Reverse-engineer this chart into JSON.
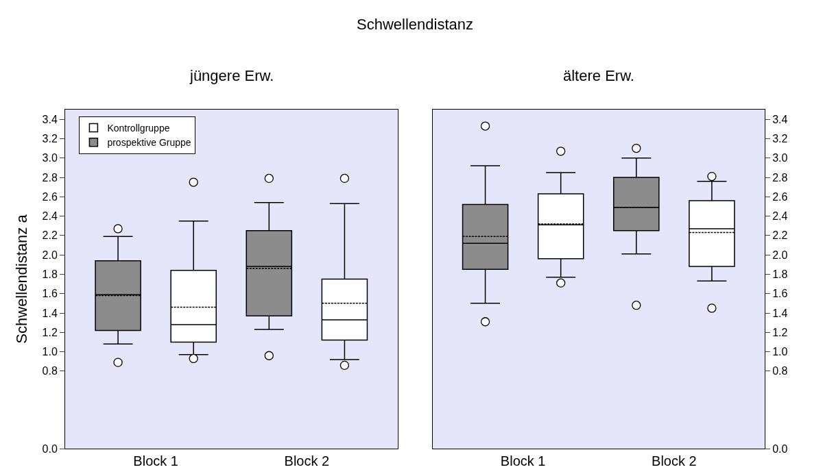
{
  "chart_data": [
    {
      "type": "box",
      "title": "jüngere Erw.",
      "annotations": [
        "Schwellendistanz"
      ],
      "ylabel": "Schwellendistanz a",
      "categories": [
        "Block 1",
        "Block 2"
      ],
      "ylim": [
        0,
        3.5
      ],
      "yticks": [
        {
          "value": 0,
          "label": "0.0"
        },
        0.8,
        {
          "value": 1,
          "label": "1.0"
        },
        1.2,
        1.4,
        1.6,
        1.8,
        {
          "value": 2,
          "label": "2.0"
        },
        2.2,
        2.4,
        2.6,
        2.8,
        {
          "value": 3,
          "label": "3.0"
        },
        3.2,
        3.4
      ],
      "legend": "top left",
      "grid": false,
      "series": [
        {
          "name": "prospektive Gruppe",
          "color": "#8c8c8c",
          "boxes": [
            {
              "low": 1.08,
              "q1": 1.22,
              "median": 1.59,
              "q3": 1.94,
              "high": 2.19,
              "mean": 1.58,
              "outliers": [
                2.27,
                0.89
              ]
            },
            {
              "low": 1.23,
              "q1": 1.37,
              "median": 1.88,
              "q3": 2.25,
              "high": 2.54,
              "mean": 1.86,
              "outliers": [
                2.79,
                0.96
              ]
            }
          ]
        },
        {
          "name": "Kontrollgruppe",
          "color": "#ffffff",
          "boxes": [
            {
              "low": 0.97,
              "q1": 1.1,
              "median": 1.28,
              "q3": 1.84,
              "high": 2.35,
              "mean": 1.46,
              "outliers": [
                2.75,
                0.93
              ]
            },
            {
              "low": 0.92,
              "q1": 1.12,
              "median": 1.33,
              "q3": 1.75,
              "high": 2.53,
              "mean": 1.5,
              "outliers": [
                2.79,
                0.86
              ]
            }
          ]
        }
      ]
    },
    {
      "type": "box",
      "title": "ältere Erw.",
      "categories": [
        "Block 1",
        "Block 2"
      ],
      "ylim": [
        0,
        3.5
      ],
      "yticks": [
        {
          "value": 0,
          "label": "0.0"
        },
        0.8,
        {
          "value": 1,
          "label": "1.0"
        },
        1.2,
        1.4,
        1.6,
        1.8,
        {
          "value": 2,
          "label": "2.0"
        },
        2.2,
        2.4,
        2.6,
        2.8,
        {
          "value": 3,
          "label": "3.0"
        },
        3.2,
        3.4
      ],
      "legend": false,
      "grid": false,
      "series": [
        {
          "color": "#8c8c8c",
          "boxes": [
            {
              "low": 1.5,
              "q1": 1.85,
              "median": 2.12,
              "q3": 2.52,
              "high": 2.92,
              "mean": 2.19,
              "outliers": [
                3.33,
                1.31
              ]
            },
            {
              "low": 2.01,
              "q1": 2.25,
              "median": 2.49,
              "q3": 2.8,
              "high": 3.0,
              "mean": 2.49,
              "outliers": [
                3.1,
                1.48
              ]
            }
          ]
        },
        {
          "color": "#ffffff",
          "boxes": [
            {
              "low": 1.77,
              "q1": 1.96,
              "median": 2.31,
              "q3": 2.63,
              "high": 2.85,
              "mean": 2.32,
              "outliers": [
                3.07,
                1.71
              ]
            },
            {
              "low": 1.73,
              "q1": 1.88,
              "median": 2.27,
              "q3": 2.56,
              "high": 2.76,
              "mean": 2.23,
              "outliers": [
                2.81,
                1.45
              ]
            }
          ]
        }
      ]
    }
  ]
}
